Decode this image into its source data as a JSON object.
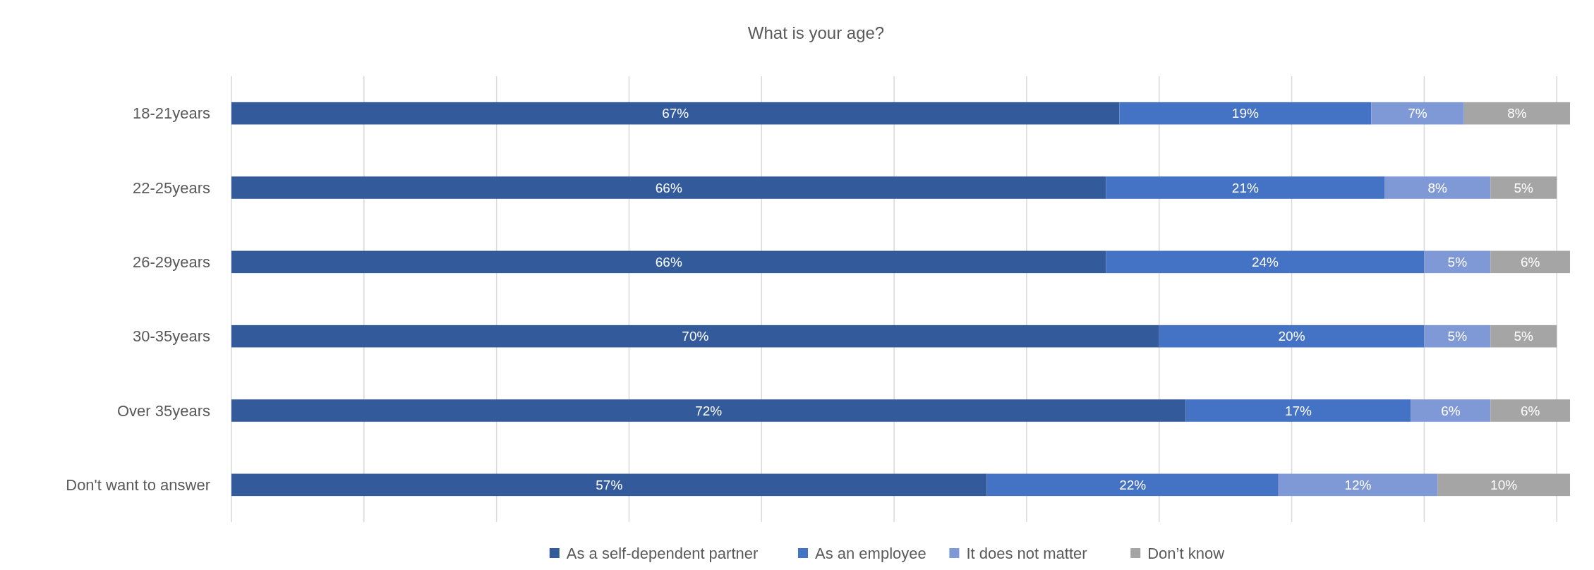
{
  "chart_data": {
    "type": "bar",
    "orientation": "horizontal",
    "stacked": true,
    "title": "What is your age?",
    "categories": [
      "18-21years",
      "22-25years",
      "26-29years",
      "30-35years",
      "Over 35years",
      "Don't want to answer"
    ],
    "series": [
      {
        "name": "As a self-dependent partner",
        "color": "#335a9b",
        "values": [
          67,
          66,
          66,
          70,
          72,
          57
        ],
        "value_labels": [
          "67%",
          "66%",
          "66%",
          "70%",
          "72%",
          "57%"
        ]
      },
      {
        "name": "As an employee",
        "color": "#4472c4",
        "values": [
          19,
          21,
          24,
          20,
          17,
          22
        ],
        "value_labels": [
          "19%",
          "21%",
          "24%",
          "20%",
          "17%",
          "22%"
        ]
      },
      {
        "name": "It does not matter",
        "color": "#7f98d6",
        "values": [
          7,
          8,
          5,
          5,
          6,
          12
        ],
        "value_labels": [
          "7%",
          "8%",
          "5%",
          "5%",
          "6%",
          "12%"
        ]
      },
      {
        "name": "Don’t know",
        "color": "#a5a5a5",
        "values": [
          8,
          5,
          6,
          5,
          6,
          10
        ],
        "value_labels": [
          "8%",
          "5%",
          "6%",
          "5%",
          "6%",
          "10%"
        ]
      }
    ],
    "grid": "x",
    "tick_labels": "y",
    "legend": "bottom"
  }
}
